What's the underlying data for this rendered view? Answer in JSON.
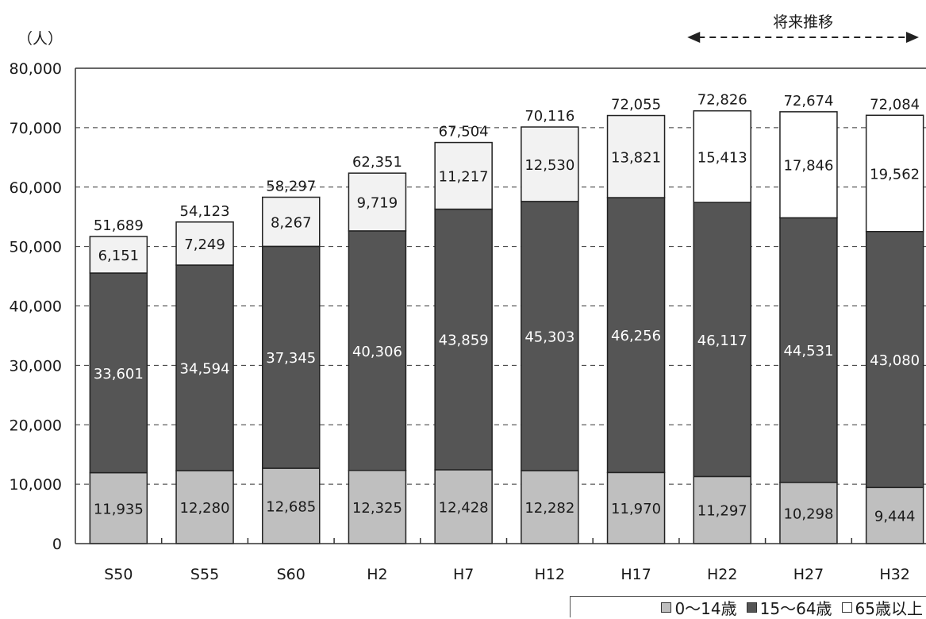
{
  "chart_data": {
    "type": "bar",
    "stacked": true,
    "unit_label": "（人）",
    "categories": [
      "S50",
      "S55",
      "S60",
      "H2",
      "H7",
      "H12",
      "H17",
      "H22",
      "H27",
      "H32"
    ],
    "series": [
      {
        "name": "0～14歳",
        "color": "#bfbfbf",
        "label_color": "#1a1a1a",
        "values": [
          11935,
          12280,
          12685,
          12325,
          12428,
          12282,
          11970,
          11297,
          10298,
          9444
        ],
        "labels": [
          "11,935",
          "12,280",
          "12,685",
          "12,325",
          "12,428",
          "12,282",
          "11,970",
          "11,297",
          "10,298",
          "9,444"
        ]
      },
      {
        "name": "15～64歳",
        "color": "#555555",
        "label_color": "#ffffff",
        "values": [
          33601,
          34594,
          37345,
          40306,
          43859,
          45303,
          46256,
          46117,
          44531,
          43080
        ],
        "labels": [
          "33,601",
          "34,594",
          "37,345",
          "40,306",
          "43,859",
          "45,303",
          "46,256",
          "46,117",
          "44,531",
          "43,080"
        ]
      },
      {
        "name": "65歳以上",
        "colors": [
          "#f2f2f2",
          "#f2f2f2",
          "#f2f2f2",
          "#f2f2f2",
          "#f2f2f2",
          "#f2f2f2",
          "#f2f2f2",
          "#ffffff",
          "#ffffff",
          "#ffffff"
        ],
        "color": "#ffffff",
        "label_color": "#1a1a1a",
        "values": [
          6151,
          7249,
          8267,
          9719,
          11217,
          12530,
          13821,
          15413,
          17846,
          19562
        ],
        "labels": [
          "6,151",
          "7,249",
          "8,267",
          "9,719",
          "11,217",
          "12,530",
          "13,821",
          "15,413",
          "17,846",
          "19,562"
        ]
      }
    ],
    "totals": [
      51689,
      54123,
      58297,
      62351,
      67504,
      70116,
      72055,
      72826,
      72674,
      72084
    ],
    "total_labels": [
      "51,689",
      "54,123",
      "58,297",
      "62,351",
      "67,504",
      "70,116",
      "72,055",
      "72,826",
      "72,674",
      "72,084"
    ],
    "ylim": [
      0,
      80000
    ],
    "yticks": [
      0,
      10000,
      20000,
      30000,
      40000,
      50000,
      60000,
      70000,
      80000
    ],
    "ytick_labels": [
      "0",
      "10,000",
      "20,000",
      "30,000",
      "40,000",
      "50,000",
      "60,000",
      "70,000",
      "80,000"
    ],
    "grid": "dashed-horizontal",
    "projection_label": "将来推移",
    "projection_from": "H22",
    "legend_position": "bottom-right"
  }
}
